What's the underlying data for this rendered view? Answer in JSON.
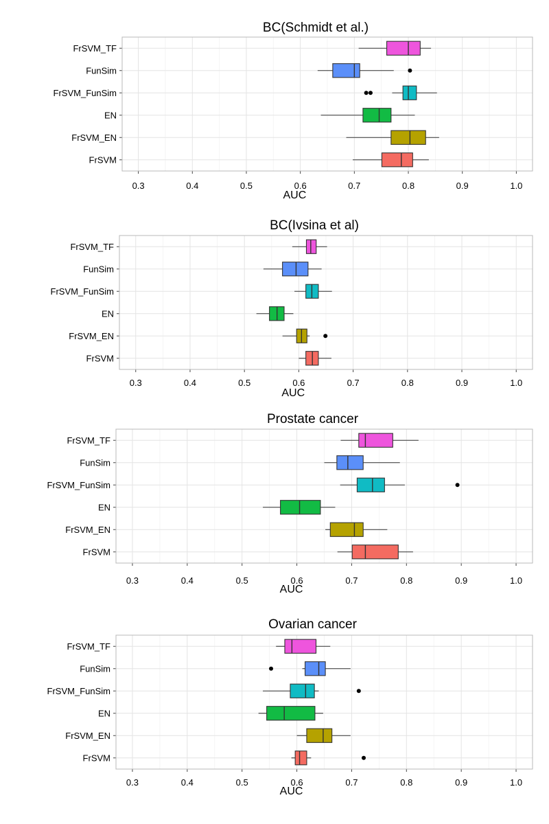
{
  "chart_data": [
    {
      "type": "boxplot",
      "title": "BC(Schmidt et al.)",
      "xlabel": "AUC",
      "xlim": [
        0.27,
        1.03
      ],
      "xticks": [
        "0.3",
        "0.4",
        "0.5",
        "0.6",
        "0.7",
        "0.8",
        "0.9",
        "1.0"
      ],
      "categories": [
        "FrSVM_TF",
        "FunSim",
        "FrSVM_FunSim",
        "EN",
        "FrSVM_EN",
        "FrSVM"
      ],
      "colors": [
        "#EE55DD",
        "#5B8FF9",
        "#10BBC4",
        "#12BB44",
        "#B5A200",
        "#F46B61"
      ],
      "boxes": [
        {
          "min": 0.708,
          "q1": 0.76,
          "median": 0.8,
          "q3": 0.822,
          "max": 0.842,
          "outliers": []
        },
        {
          "min": 0.632,
          "q1": 0.66,
          "median": 0.7,
          "q3": 0.71,
          "max": 0.773,
          "outliers": [
            0.803
          ]
        },
        {
          "min": 0.77,
          "q1": 0.79,
          "median": 0.8,
          "q3": 0.815,
          "max": 0.853,
          "outliers": [
            0.722,
            0.73
          ]
        },
        {
          "min": 0.638,
          "q1": 0.716,
          "median": 0.746,
          "q3": 0.768,
          "max": 0.812,
          "outliers": []
        },
        {
          "min": 0.685,
          "q1": 0.768,
          "median": 0.803,
          "q3": 0.832,
          "max": 0.857,
          "outliers": []
        },
        {
          "min": 0.697,
          "q1": 0.751,
          "median": 0.787,
          "q3": 0.808,
          "max": 0.838,
          "outliers": []
        }
      ]
    },
    {
      "type": "boxplot",
      "title": "BC(Ivsina et al)",
      "xlabel": "AUC",
      "xlim": [
        0.27,
        1.03
      ],
      "xticks": [
        "0.3",
        "0.4",
        "0.5",
        "0.6",
        "0.7",
        "0.8",
        "0.9",
        "1.0"
      ],
      "categories": [
        "FrSVM_TF",
        "FunSim",
        "FrSVM_FunSim",
        "EN",
        "FrSVM_EN",
        "FrSVM"
      ],
      "colors": [
        "#EE55DD",
        "#5B8FF9",
        "#10BBC4",
        "#12BB44",
        "#B5A200",
        "#F46B61"
      ],
      "boxes": [
        {
          "min": 0.588,
          "q1": 0.614,
          "median": 0.622,
          "q3": 0.632,
          "max": 0.652,
          "outliers": []
        },
        {
          "min": 0.535,
          "q1": 0.57,
          "median": 0.595,
          "q3": 0.617,
          "max": 0.642,
          "outliers": []
        },
        {
          "min": 0.592,
          "q1": 0.613,
          "median": 0.624,
          "q3": 0.636,
          "max": 0.661,
          "outliers": []
        },
        {
          "min": 0.522,
          "q1": 0.546,
          "median": 0.56,
          "q3": 0.573,
          "max": 0.59,
          "outliers": []
        },
        {
          "min": 0.57,
          "q1": 0.596,
          "median": 0.605,
          "q3": 0.615,
          "max": 0.62,
          "outliers": [
            0.649
          ]
        },
        {
          "min": 0.6,
          "q1": 0.613,
          "median": 0.625,
          "q3": 0.636,
          "max": 0.66,
          "outliers": []
        }
      ]
    },
    {
      "type": "boxplot",
      "title": "Prostate cancer",
      "xlabel": "AUC",
      "xlim": [
        0.27,
        1.03
      ],
      "xticks": [
        "0.3",
        "0.4",
        "0.5",
        "0.6",
        "0.7",
        "0.8",
        "0.9",
        "1.0"
      ],
      "categories": [
        "FrSVM_TF",
        "FunSim",
        "FrSVM_FunSim",
        "EN",
        "FrSVM_EN",
        "FrSVM"
      ],
      "colors": [
        "#EE55DD",
        "#5B8FF9",
        "#10BBC4",
        "#12BB44",
        "#B5A200",
        "#F46B61"
      ],
      "boxes": [
        {
          "min": 0.68,
          "q1": 0.713,
          "median": 0.725,
          "q3": 0.775,
          "max": 0.822,
          "outliers": []
        },
        {
          "min": 0.65,
          "q1": 0.673,
          "median": 0.693,
          "q3": 0.721,
          "max": 0.788,
          "outliers": []
        },
        {
          "min": 0.679,
          "q1": 0.71,
          "median": 0.738,
          "q3": 0.76,
          "max": 0.797,
          "outliers": [
            0.893
          ]
        },
        {
          "min": 0.538,
          "q1": 0.57,
          "median": 0.605,
          "q3": 0.643,
          "max": 0.67,
          "outliers": []
        },
        {
          "min": 0.652,
          "q1": 0.661,
          "median": 0.705,
          "q3": 0.721,
          "max": 0.765,
          "outliers": []
        },
        {
          "min": 0.674,
          "q1": 0.701,
          "median": 0.725,
          "q3": 0.785,
          "max": 0.812,
          "outliers": []
        }
      ]
    },
    {
      "type": "boxplot",
      "title": "Ovarian cancer",
      "xlabel": "AUC",
      "xlim": [
        0.27,
        1.03
      ],
      "xticks": [
        "0.3",
        "0.4",
        "0.5",
        "0.6",
        "0.7",
        "0.8",
        "0.9",
        "1.0"
      ],
      "categories": [
        "FrSVM_TF",
        "FunSim",
        "FrSVM_FunSim",
        "EN",
        "FrSVM_EN",
        "FrSVM"
      ],
      "colors": [
        "#EE55DD",
        "#5B8FF9",
        "#10BBC4",
        "#12BB44",
        "#B5A200",
        "#F46B61"
      ],
      "boxes": [
        {
          "min": 0.562,
          "q1": 0.578,
          "median": 0.591,
          "q3": 0.635,
          "max": 0.661,
          "outliers": []
        },
        {
          "min": 0.61,
          "q1": 0.615,
          "median": 0.64,
          "q3": 0.652,
          "max": 0.698,
          "outliers": [
            0.553
          ]
        },
        {
          "min": 0.538,
          "q1": 0.588,
          "median": 0.616,
          "q3": 0.632,
          "max": 0.64,
          "outliers": [
            0.713
          ]
        },
        {
          "min": 0.53,
          "q1": 0.545,
          "median": 0.577,
          "q3": 0.633,
          "max": 0.648,
          "outliers": []
        },
        {
          "min": 0.6,
          "q1": 0.618,
          "median": 0.648,
          "q3": 0.664,
          "max": 0.698,
          "outliers": []
        },
        {
          "min": 0.59,
          "q1": 0.597,
          "median": 0.605,
          "q3": 0.618,
          "max": 0.626,
          "outliers": [
            0.722
          ]
        }
      ]
    }
  ]
}
